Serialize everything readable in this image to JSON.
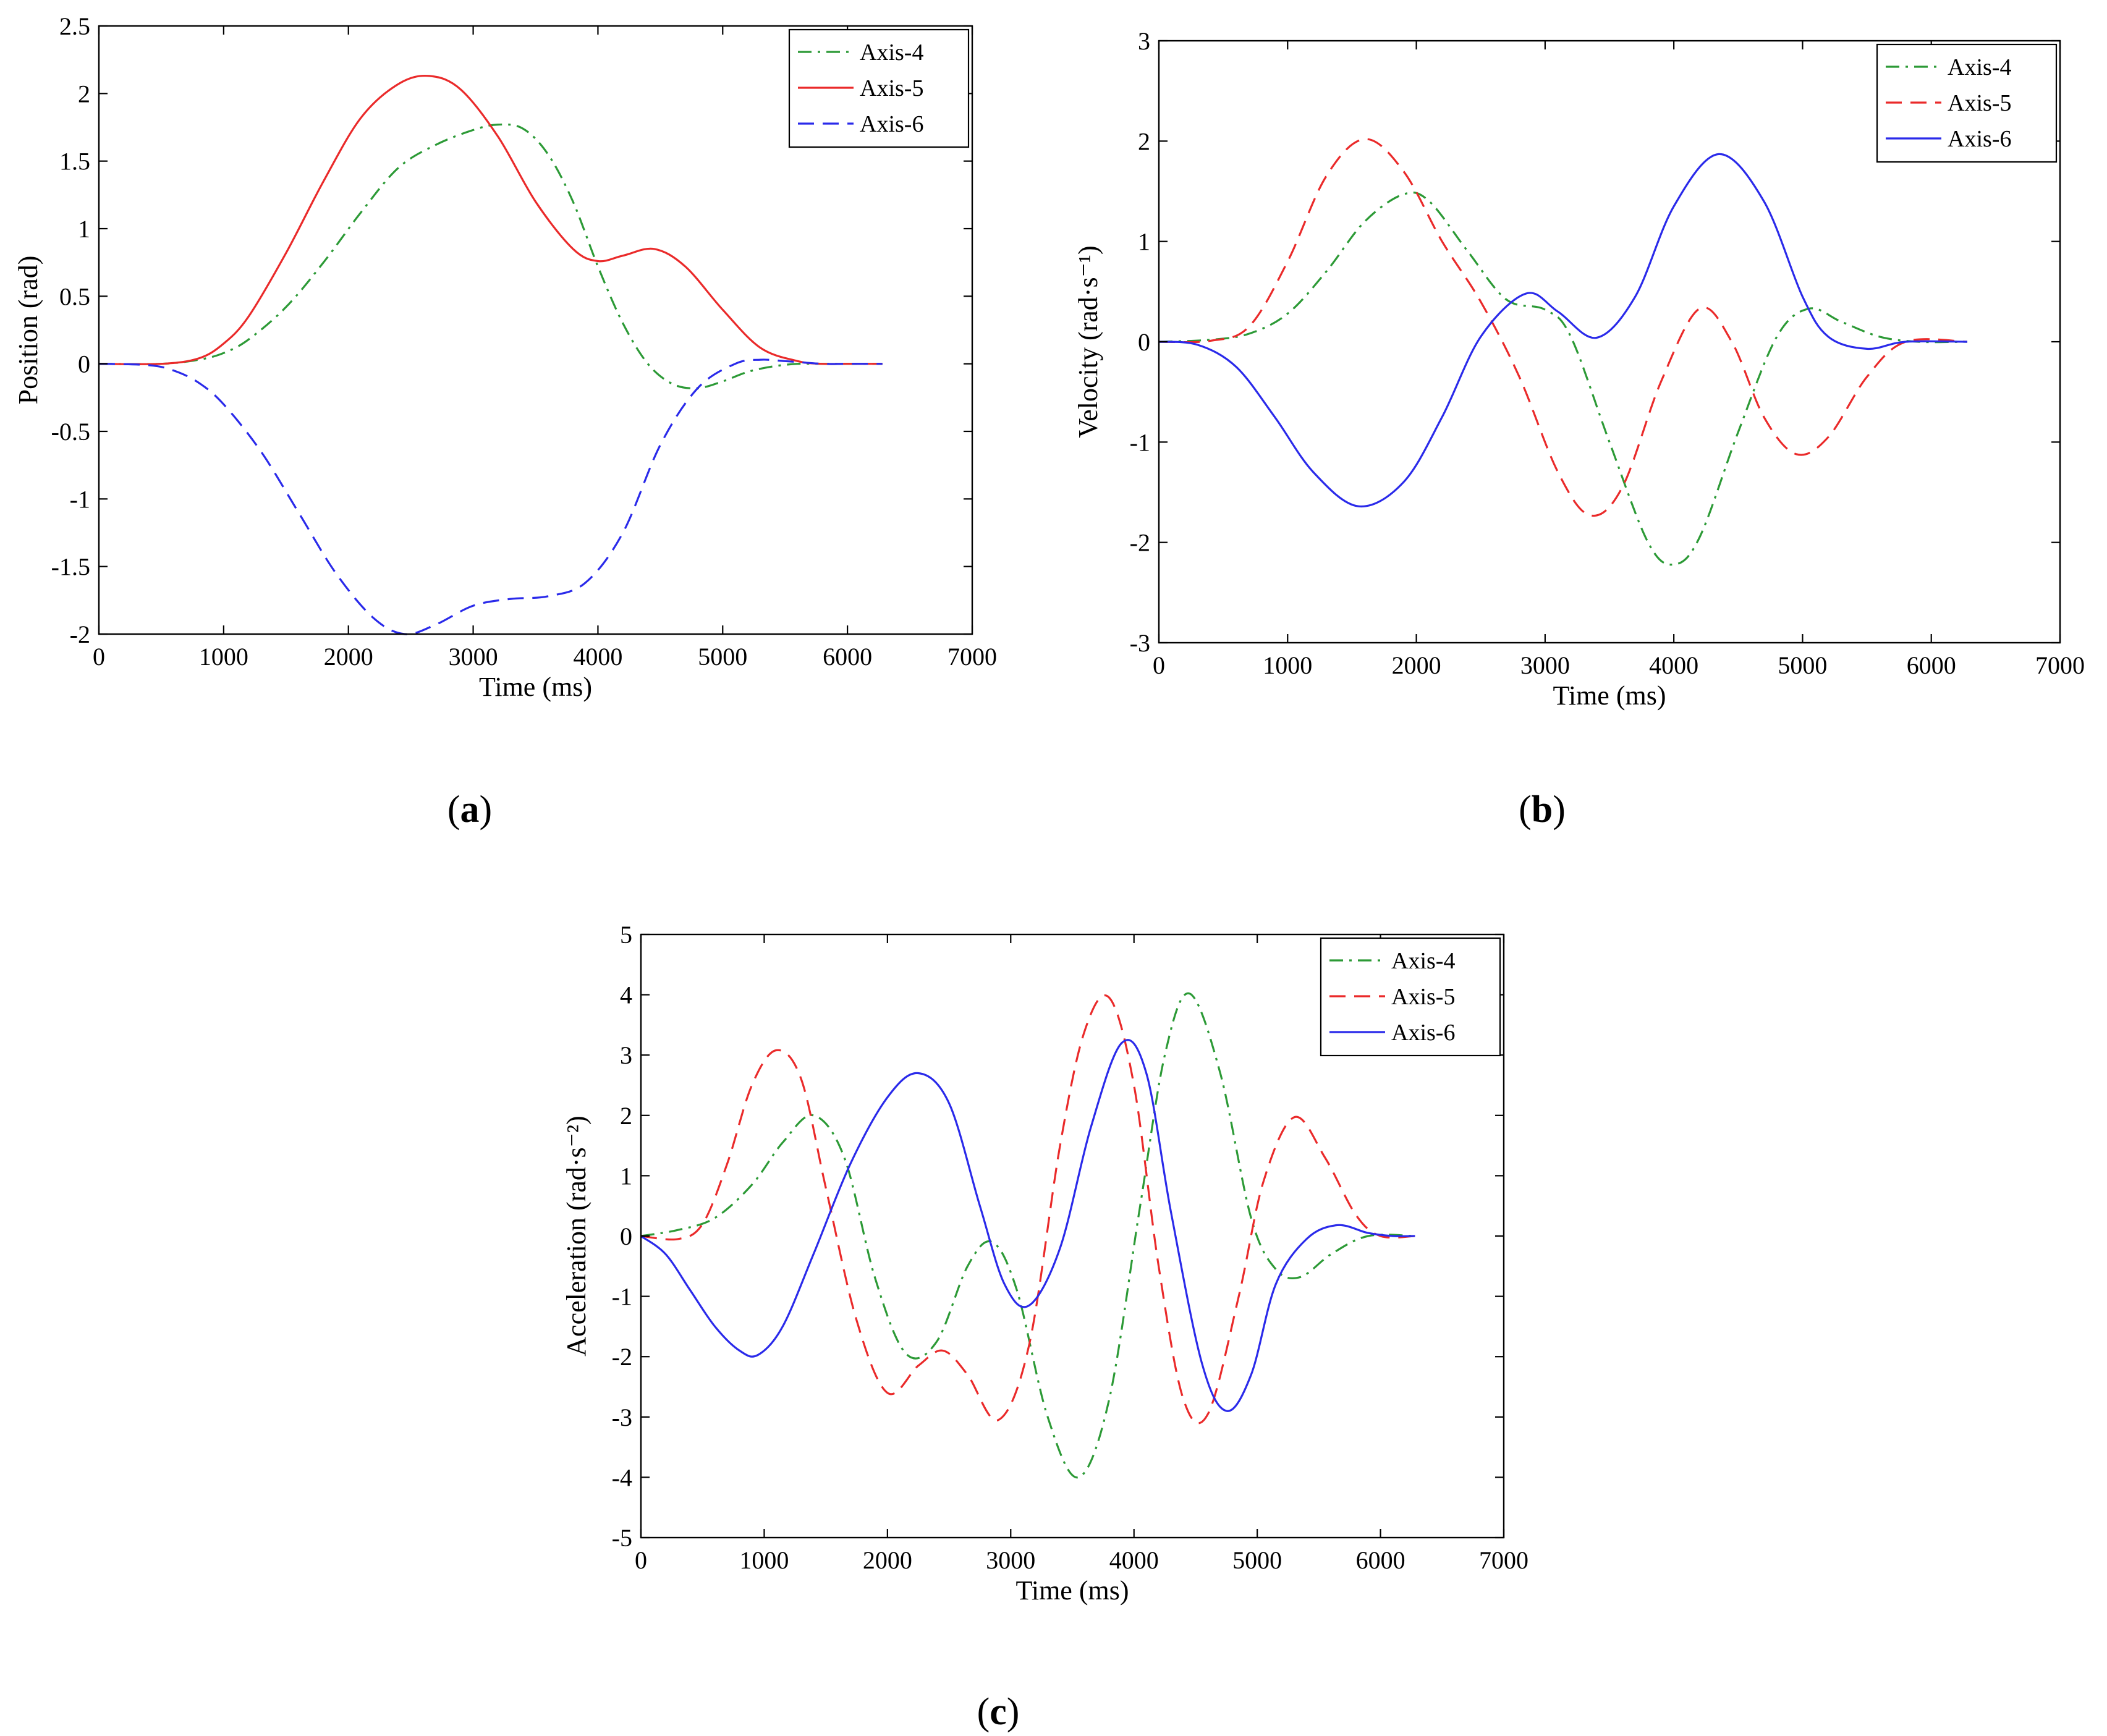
{
  "colors": {
    "axis4": "#2c9a36",
    "axis5": "#ea2a2a",
    "axis6": "#2a2aea"
  },
  "chart_data": [
    {
      "id": "a",
      "type": "line",
      "panel_label": {
        "open": "(",
        "letter": "a",
        "close": ")"
      },
      "xlabel": "Time (ms)",
      "ylabel": "Position (rad)",
      "xlim": [
        0,
        7000
      ],
      "ylim": [
        -2,
        2.5
      ],
      "xticks": [
        0,
        1000,
        2000,
        3000,
        4000,
        5000,
        6000,
        7000
      ],
      "xtick_labels": [
        "0",
        "1000",
        "2000",
        "3000",
        "4000",
        "5000",
        "6000",
        "7000"
      ],
      "yticks": [
        -2,
        -1.5,
        -1,
        -0.5,
        0,
        0.5,
        1,
        1.5,
        2,
        2.5
      ],
      "ytick_labels": [
        "-2",
        "-1.5",
        "-1",
        "-0.5",
        "0",
        "0.5",
        "1",
        "1.5",
        "2",
        "2.5"
      ],
      "legend_position": "top-right",
      "series": [
        {
          "name": "Axis-4",
          "style": "dashdot",
          "color_key": "axis4",
          "x": [
            0,
            500,
            800,
            1000,
            1200,
            1500,
            1800,
            2100,
            2400,
            2700,
            3000,
            3200,
            3400,
            3600,
            3800,
            4000,
            4200,
            4400,
            4600,
            4800,
            5000,
            5200,
            5400,
            5600,
            5800,
            6000,
            6280
          ],
          "y": [
            0,
            0.0,
            0.03,
            0.08,
            0.18,
            0.42,
            0.75,
            1.12,
            1.45,
            1.62,
            1.73,
            1.77,
            1.74,
            1.55,
            1.2,
            0.72,
            0.3,
            0.0,
            -0.15,
            -0.18,
            -0.13,
            -0.06,
            -0.02,
            0.0,
            0.0,
            0.0,
            0.0
          ]
        },
        {
          "name": "Axis-5",
          "style": "solid",
          "color_key": "axis5",
          "x": [
            0,
            500,
            800,
            1000,
            1200,
            1500,
            1800,
            2100,
            2400,
            2650,
            2900,
            3200,
            3500,
            3800,
            4000,
            4200,
            4450,
            4700,
            5000,
            5300,
            5600,
            5800,
            6000,
            6280
          ],
          "y": [
            0,
            0.0,
            0.04,
            0.15,
            0.35,
            0.82,
            1.35,
            1.82,
            2.07,
            2.13,
            2.03,
            1.68,
            1.2,
            0.85,
            0.76,
            0.8,
            0.85,
            0.72,
            0.4,
            0.12,
            0.02,
            0.0,
            0.0,
            0.0
          ]
        },
        {
          "name": "Axis-6",
          "style": "dashed",
          "color_key": "axis6",
          "x": [
            0,
            400,
            600,
            800,
            1000,
            1300,
            1600,
            1900,
            2200,
            2450,
            2700,
            3000,
            3300,
            3600,
            3900,
            4200,
            4500,
            4800,
            5100,
            5300,
            5500,
            5800,
            6000,
            6280
          ],
          "y": [
            0,
            -0.01,
            -0.05,
            -0.14,
            -0.3,
            -0.65,
            -1.1,
            -1.55,
            -1.88,
            -2.0,
            -1.93,
            -1.79,
            -1.74,
            -1.72,
            -1.62,
            -1.25,
            -0.6,
            -0.18,
            0.0,
            0.03,
            0.02,
            0.0,
            0.0,
            0.0
          ]
        }
      ]
    },
    {
      "id": "b",
      "type": "line",
      "panel_label": {
        "open": "(",
        "letter": "b",
        "close": ")"
      },
      "xlabel": "Time (ms)",
      "ylabel": "Velocity (rad·s⁻¹)",
      "xlim": [
        0,
        7000
      ],
      "ylim": [
        -3,
        3
      ],
      "xticks": [
        0,
        1000,
        2000,
        3000,
        4000,
        5000,
        6000,
        7000
      ],
      "xtick_labels": [
        "0",
        "1000",
        "2000",
        "3000",
        "4000",
        "5000",
        "6000",
        "7000"
      ],
      "yticks": [
        -3,
        -2,
        -1,
        0,
        1,
        2,
        3
      ],
      "ytick_labels": [
        "-3",
        "-2",
        "-1",
        "0",
        "1",
        "2",
        "3"
      ],
      "legend_position": "top-right",
      "series": [
        {
          "name": "Axis-4",
          "style": "dashdot",
          "color_key": "axis4",
          "x": [
            0,
            400,
            700,
            1000,
            1300,
            1600,
            1900,
            2100,
            2400,
            2700,
            3000,
            3200,
            3500,
            3800,
            4000,
            4200,
            4500,
            4800,
            5050,
            5300,
            5600,
            5900,
            6280
          ],
          "y": [
            0,
            0.02,
            0.08,
            0.28,
            0.7,
            1.2,
            1.47,
            1.4,
            0.9,
            0.42,
            0.32,
            0.05,
            -1.0,
            -2.0,
            -2.22,
            -1.95,
            -0.9,
            0.05,
            0.33,
            0.2,
            0.05,
            0.0,
            0.0
          ]
        },
        {
          "name": "Axis-5",
          "style": "dashed",
          "color_key": "axis5",
          "x": [
            0,
            400,
            700,
            1000,
            1300,
            1600,
            1900,
            2200,
            2500,
            2800,
            3100,
            3350,
            3600,
            3900,
            4200,
            4450,
            4700,
            4950,
            5200,
            5500,
            5800,
            6280
          ],
          "y": [
            0,
            0.01,
            0.15,
            0.8,
            1.65,
            2.02,
            1.7,
            1.0,
            0.4,
            -0.35,
            -1.3,
            -1.73,
            -1.45,
            -0.4,
            0.33,
            0.0,
            -0.75,
            -1.12,
            -0.95,
            -0.35,
            0.0,
            0.0
          ]
        },
        {
          "name": "Axis-6",
          "style": "solid",
          "color_key": "axis6",
          "x": [
            0,
            300,
            600,
            900,
            1200,
            1550,
            1900,
            2200,
            2500,
            2850,
            3100,
            3400,
            3700,
            4000,
            4350,
            4700,
            5000,
            5200,
            5500,
            5800,
            6280
          ],
          "y": [
            0,
            -0.03,
            -0.25,
            -0.75,
            -1.3,
            -1.64,
            -1.4,
            -0.75,
            0.05,
            0.48,
            0.3,
            0.04,
            0.45,
            1.35,
            1.87,
            1.4,
            0.45,
            0.05,
            -0.07,
            0.0,
            0.0
          ]
        }
      ]
    },
    {
      "id": "c",
      "type": "line",
      "panel_label": {
        "open": "(",
        "letter": "c",
        "close": ")"
      },
      "xlabel": "Time (ms)",
      "ylabel": "Acceleration (rad·s⁻²)",
      "xlim": [
        0,
        7000
      ],
      "ylim": [
        -5,
        5
      ],
      "xticks": [
        0,
        1000,
        2000,
        3000,
        4000,
        5000,
        6000,
        7000
      ],
      "xtick_labels": [
        "0",
        "1000",
        "2000",
        "3000",
        "4000",
        "5000",
        "6000",
        "7000"
      ],
      "yticks": [
        -5,
        -4,
        -3,
        -2,
        -1,
        0,
        1,
        2,
        3,
        4,
        5
      ],
      "ytick_labels": [
        "-5",
        "-4",
        "-3",
        "-2",
        "-1",
        "0",
        "1",
        "2",
        "3",
        "4",
        "5"
      ],
      "legend_position": "top-right",
      "series": [
        {
          "name": "Axis-4",
          "style": "dashdot",
          "color_key": "axis4",
          "x": [
            0,
            300,
            600,
            900,
            1150,
            1400,
            1650,
            1900,
            2150,
            2400,
            2650,
            2850,
            3050,
            3300,
            3550,
            3800,
            4050,
            4250,
            4450,
            4700,
            4950,
            5150,
            5350,
            5600,
            5900,
            6280
          ],
          "y": [
            0,
            0.1,
            0.3,
            0.85,
            1.55,
            2.0,
            1.3,
            -0.7,
            -1.95,
            -1.75,
            -0.5,
            -0.1,
            -0.9,
            -3.0,
            -4.0,
            -2.7,
            0.5,
            3.0,
            4.02,
            2.7,
            0.3,
            -0.55,
            -0.68,
            -0.3,
            0.0,
            0.0
          ]
        },
        {
          "name": "Axis-5",
          "style": "dashed",
          "color_key": "axis5",
          "x": [
            0,
            300,
            500,
            700,
            900,
            1100,
            1300,
            1500,
            1750,
            2000,
            2250,
            2450,
            2650,
            2900,
            3150,
            3400,
            3600,
            3800,
            4000,
            4200,
            4400,
            4600,
            4850,
            5050,
            5300,
            5550,
            5800,
            6000,
            6280
          ],
          "y": [
            0,
            -0.05,
            0.2,
            1.2,
            2.5,
            3.08,
            2.6,
            0.8,
            -1.4,
            -2.6,
            -2.15,
            -1.9,
            -2.3,
            -3.05,
            -1.8,
            1.5,
            3.4,
            3.95,
            2.5,
            -0.5,
            -2.7,
            -2.95,
            -1.0,
            0.9,
            1.97,
            1.3,
            0.35,
            0.0,
            0.0
          ]
        },
        {
          "name": "Axis-6",
          "style": "solid",
          "color_key": "axis6",
          "x": [
            0,
            200,
            400,
            600,
            800,
            950,
            1150,
            1400,
            1700,
            2000,
            2250,
            2500,
            2750,
            2950,
            3150,
            3400,
            3650,
            3900,
            4100,
            4300,
            4550,
            4750,
            4950,
            5150,
            5400,
            5650,
            5900,
            6100,
            6280
          ],
          "y": [
            0,
            -0.3,
            -0.9,
            -1.5,
            -1.9,
            -1.97,
            -1.5,
            -0.3,
            1.2,
            2.3,
            2.7,
            2.2,
            0.5,
            -0.8,
            -1.15,
            -0.2,
            1.8,
            3.2,
            2.7,
            0.4,
            -2.1,
            -2.9,
            -2.3,
            -0.8,
            -0.05,
            0.18,
            0.05,
            0.0,
            0.0
          ]
        }
      ]
    }
  ]
}
